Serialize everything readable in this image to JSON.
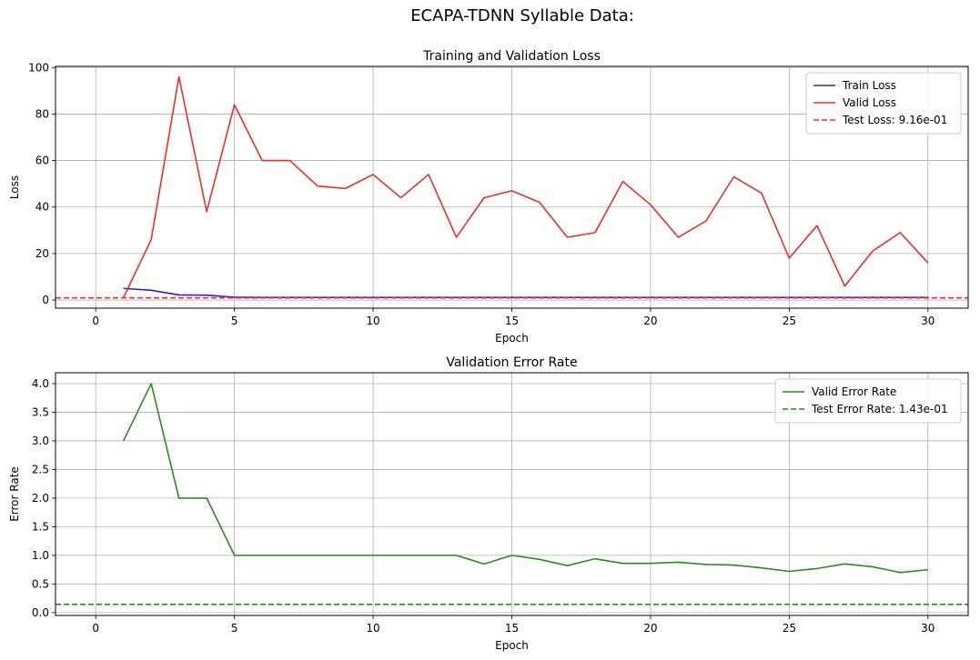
{
  "figure": {
    "suptitle": "ECAPA-TDNN Syllable Data:"
  },
  "chart_data": [
    {
      "type": "line",
      "title": "Training and Validation Loss",
      "xlabel": "Epoch",
      "ylabel": "Loss",
      "xlim": [
        -1.45,
        31.45
      ],
      "ylim": [
        -3.5,
        100.5
      ],
      "xticks": [
        0,
        5,
        10,
        15,
        20,
        25,
        30
      ],
      "yticks": [
        0,
        20,
        40,
        60,
        80,
        100
      ],
      "grid": true,
      "legend_position": "upper-right",
      "x": [
        1,
        2,
        3,
        4,
        5,
        6,
        7,
        8,
        9,
        10,
        11,
        12,
        13,
        14,
        15,
        16,
        17,
        18,
        19,
        20,
        21,
        22,
        23,
        24,
        25,
        26,
        27,
        28,
        29,
        30
      ],
      "series": [
        {
          "name": "Train Loss",
          "color": "#2b1fd6",
          "style": "solid",
          "values": [
            5,
            4.2,
            2.2,
            2.1,
            1.2,
            1.1,
            1.1,
            1.1,
            1.1,
            1.1,
            1.1,
            1.1,
            1.1,
            1.1,
            1.1,
            1.1,
            1.1,
            1.1,
            1.1,
            1.1,
            1.1,
            1.1,
            1.1,
            1.1,
            1.1,
            1.1,
            1.1,
            1.1,
            1.1,
            1.1
          ]
        },
        {
          "name": "Valid Loss",
          "color": "#e8302a",
          "style": "solid",
          "values": [
            1,
            26,
            96,
            38,
            84,
            60,
            60,
            49,
            48,
            54,
            44,
            54,
            27,
            44,
            47,
            42,
            27,
            29,
            51,
            41,
            27,
            34,
            53,
            46,
            18,
            32,
            6,
            21,
            29,
            16
          ]
        }
      ],
      "hlines": [
        {
          "name": "Test Loss: 9.16e-01",
          "value": 0.916,
          "color": "#e8302a",
          "style": "dashed"
        }
      ]
    },
    {
      "type": "line",
      "title": "Validation Error Rate",
      "xlabel": "Epoch",
      "ylabel": "Error Rate",
      "xlim": [
        -1.45,
        31.45
      ],
      "ylim": [
        -0.05,
        4.19
      ],
      "xticks": [
        0,
        5,
        10,
        15,
        20,
        25,
        30
      ],
      "yticks": [
        0.0,
        0.5,
        1.0,
        1.5,
        2.0,
        2.5,
        3.0,
        3.5,
        4.0
      ],
      "ytick_labels": [
        "0.0",
        "0.5",
        "1.0",
        "1.5",
        "2.0",
        "2.5",
        "3.0",
        "3.5",
        "4.0"
      ],
      "grid": true,
      "legend_position": "upper-right",
      "x": [
        1,
        2,
        3,
        4,
        5,
        6,
        7,
        8,
        9,
        10,
        11,
        12,
        13,
        14,
        15,
        16,
        17,
        18,
        19,
        20,
        21,
        22,
        23,
        24,
        25,
        26,
        27,
        28,
        29,
        30
      ],
      "series": [
        {
          "name": "Valid Error Rate",
          "color": "#2c8a1e",
          "style": "solid",
          "values": [
            3.0,
            4.0,
            2.0,
            2.0,
            1.0,
            1.0,
            1.0,
            1.0,
            1.0,
            1.0,
            1.0,
            1.0,
            1.0,
            0.85,
            1.0,
            0.93,
            0.82,
            0.94,
            0.86,
            0.86,
            0.88,
            0.84,
            0.83,
            0.78,
            0.72,
            0.77,
            0.85,
            0.8,
            0.7,
            0.75
          ]
        }
      ],
      "hlines": [
        {
          "name": "Test Error Rate: 1.43e-01",
          "value": 0.143,
          "color": "#2c8a1e",
          "style": "dashed"
        }
      ]
    }
  ]
}
